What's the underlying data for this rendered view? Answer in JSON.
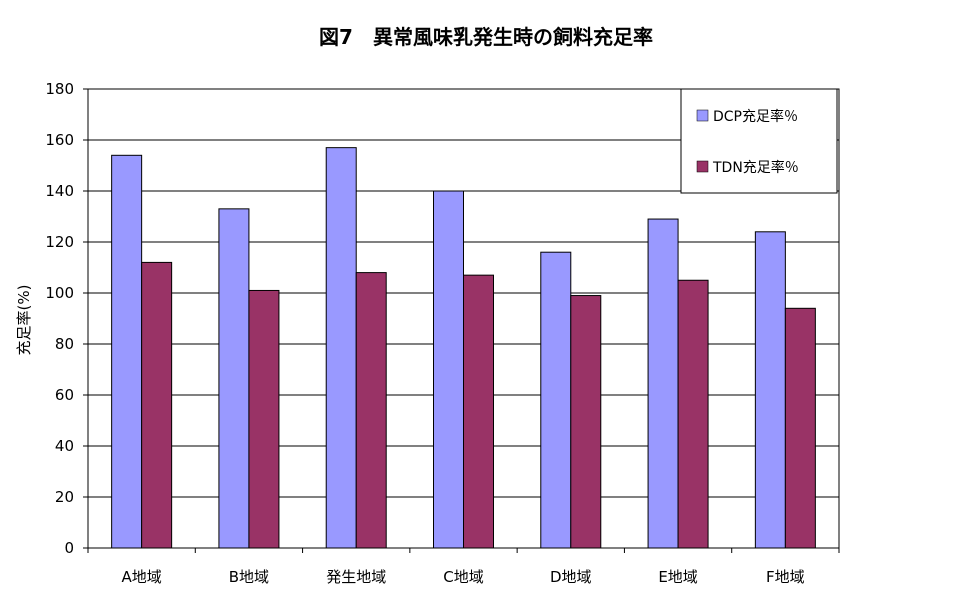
{
  "chart_data": {
    "type": "bar",
    "title": "図7　異常風味乳発生時の飼料充足率",
    "xlabel": "",
    "ylabel": "充足率(%)",
    "ylim": [
      0,
      180
    ],
    "ytick_step": 20,
    "grid": true,
    "legend_position": "top-right",
    "categories": [
      "A地域",
      "B地域",
      "発生地域",
      "C地域",
      "D地域",
      "E地域",
      "F地域"
    ],
    "series": [
      {
        "name": "DCP充足率％",
        "color": "#9999ff",
        "values": [
          154,
          133,
          157,
          140,
          116,
          129,
          124
        ]
      },
      {
        "name": "TDN充足率％",
        "color": "#993366",
        "values": [
          112,
          101,
          108,
          107,
          99,
          105,
          94
        ]
      }
    ]
  }
}
